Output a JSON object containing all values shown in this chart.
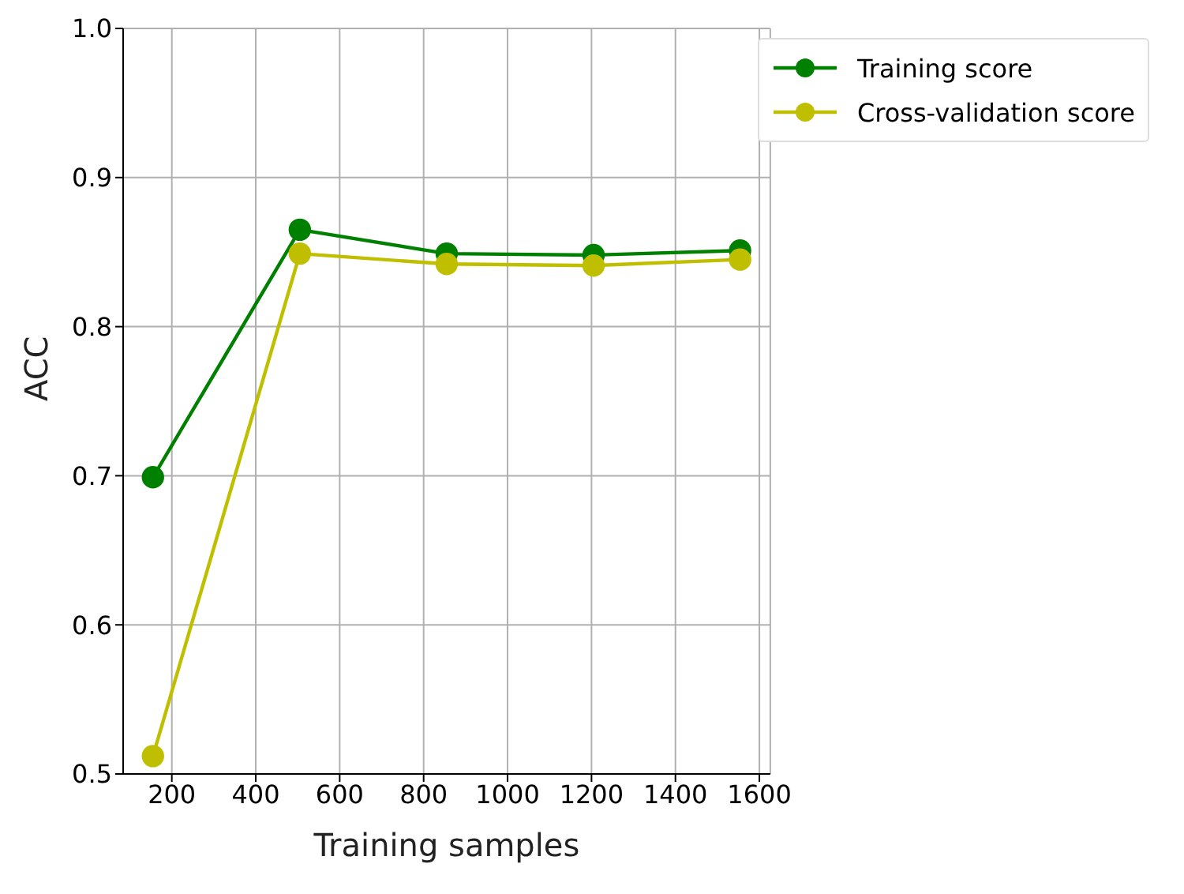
{
  "chart_data": {
    "type": "line",
    "xlabel": "Training samples",
    "ylabel": "ACC",
    "x": [
      155,
      505,
      855,
      1205,
      1554
    ],
    "series": [
      {
        "name": "Training score",
        "color": "#008000",
        "values": [
          0.699,
          0.865,
          0.849,
          0.848,
          0.851
        ]
      },
      {
        "name": "Cross-validation score",
        "color": "#bfbf00",
        "values": [
          0.512,
          0.849,
          0.842,
          0.841,
          0.845
        ]
      }
    ],
    "xlim": [
      84,
      1626
    ],
    "xticks": [
      200,
      400,
      600,
      800,
      1000,
      1200,
      1400,
      1600
    ],
    "ylim": [
      0.5,
      1.0
    ],
    "yticks": [
      0.5,
      0.6,
      0.7,
      0.8,
      0.9,
      {
        "value": 1,
        "label": "1.0"
      }
    ],
    "grid": true,
    "legend": "top right",
    "marker": "circle",
    "line_style": "solid"
  }
}
